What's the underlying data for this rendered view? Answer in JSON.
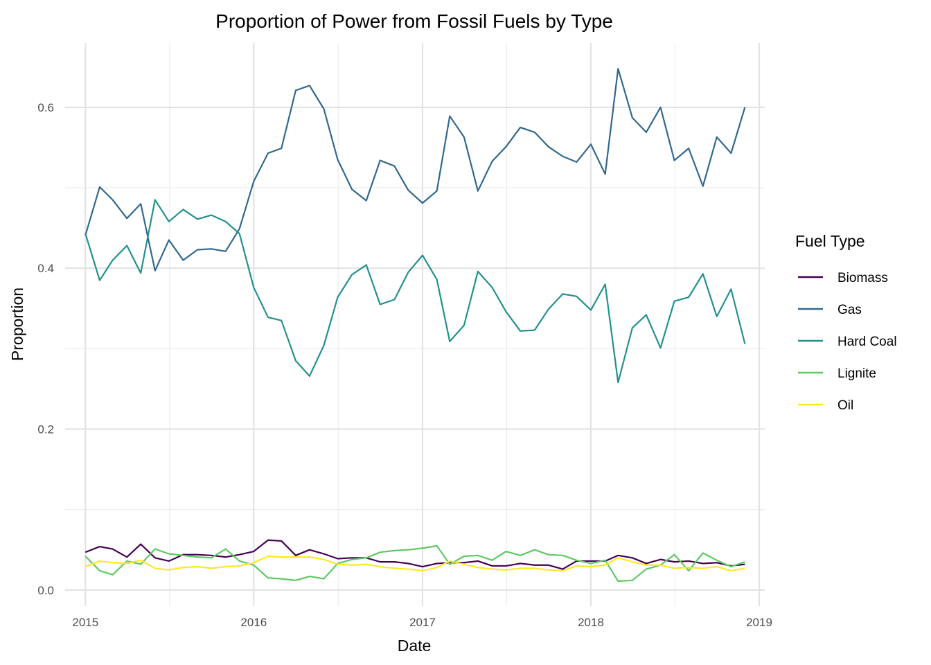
{
  "chart_data": {
    "type": "line",
    "title": "Proportion of Power from Fossil Fuels by Type",
    "xlabel": "Date",
    "ylabel": "Proportion",
    "xlim": [
      "2014-11-18",
      "2019-01-13"
    ],
    "ylim": [
      -0.02,
      0.68
    ],
    "grid": true,
    "legend_title": "Fuel Type",
    "legend_position": "right",
    "x_ticks": [
      "2015",
      "2016",
      "2017",
      "2018",
      "2019"
    ],
    "y_ticks": [
      "0.0",
      "0.2",
      "0.4",
      "0.6"
    ],
    "x": [
      "2015-01",
      "2015-02",
      "2015-03",
      "2015-04",
      "2015-05",
      "2015-06",
      "2015-07",
      "2015-08",
      "2015-09",
      "2015-10",
      "2015-11",
      "2015-12",
      "2016-01",
      "2016-02",
      "2016-03",
      "2016-04",
      "2016-05",
      "2016-06",
      "2016-07",
      "2016-08",
      "2016-09",
      "2016-10",
      "2016-11",
      "2016-12",
      "2017-01",
      "2017-02",
      "2017-03",
      "2017-04",
      "2017-05",
      "2017-06",
      "2017-07",
      "2017-08",
      "2017-09",
      "2017-10",
      "2017-11",
      "2017-12",
      "2018-01",
      "2018-02",
      "2018-03",
      "2018-04",
      "2018-05",
      "2018-06",
      "2018-07",
      "2018-08",
      "2018-09",
      "2018-10",
      "2018-11",
      "2018-12"
    ],
    "series": [
      {
        "name": "Biomass",
        "color": "#440154",
        "values": [
          0.047,
          0.054,
          0.051,
          0.041,
          0.057,
          0.04,
          0.036,
          0.044,
          0.044,
          0.043,
          0.041,
          0.044,
          0.048,
          0.062,
          0.061,
          0.043,
          0.05,
          0.045,
          0.039,
          0.04,
          0.04,
          0.035,
          0.035,
          0.033,
          0.029,
          0.033,
          0.034,
          0.034,
          0.036,
          0.03,
          0.03,
          0.033,
          0.031,
          0.031,
          0.026,
          0.036,
          0.036,
          0.036,
          0.043,
          0.04,
          0.033,
          0.038,
          0.035,
          0.036,
          0.033,
          0.034,
          0.03,
          0.032
        ]
      },
      {
        "name": "Gas",
        "color": "#31688e",
        "values": [
          0.441,
          0.501,
          0.485,
          0.462,
          0.48,
          0.397,
          0.435,
          0.41,
          0.423,
          0.424,
          0.421,
          0.449,
          0.508,
          0.543,
          0.549,
          0.621,
          0.627,
          0.598,
          0.535,
          0.498,
          0.484,
          0.534,
          0.527,
          0.497,
          0.481,
          0.496,
          0.589,
          0.563,
          0.496,
          0.533,
          0.551,
          0.575,
          0.569,
          0.551,
          0.539,
          0.532,
          0.554,
          0.517,
          0.648,
          0.587,
          0.569,
          0.6,
          0.534,
          0.549,
          0.502,
          0.563,
          0.543,
          0.6
        ]
      },
      {
        "name": "Hard Coal",
        "color": "#21918c",
        "values": [
          0.443,
          0.385,
          0.41,
          0.428,
          0.394,
          0.485,
          0.458,
          0.473,
          0.461,
          0.466,
          0.458,
          0.443,
          0.376,
          0.339,
          0.335,
          0.285,
          0.266,
          0.304,
          0.364,
          0.392,
          0.404,
          0.355,
          0.361,
          0.395,
          0.416,
          0.386,
          0.309,
          0.329,
          0.396,
          0.376,
          0.346,
          0.322,
          0.323,
          0.349,
          0.368,
          0.365,
          0.348,
          0.38,
          0.258,
          0.326,
          0.342,
          0.301,
          0.359,
          0.364,
          0.393,
          0.34,
          0.374,
          0.306
        ]
      },
      {
        "name": "Lignite",
        "color": "#5ec962",
        "values": [
          0.042,
          0.024,
          0.019,
          0.036,
          0.032,
          0.051,
          0.045,
          0.043,
          0.041,
          0.04,
          0.051,
          0.036,
          0.031,
          0.015,
          0.014,
          0.012,
          0.017,
          0.014,
          0.033,
          0.038,
          0.04,
          0.047,
          0.049,
          0.05,
          0.052,
          0.055,
          0.032,
          0.042,
          0.043,
          0.037,
          0.048,
          0.043,
          0.05,
          0.044,
          0.043,
          0.037,
          0.033,
          0.037,
          0.011,
          0.012,
          0.026,
          0.031,
          0.044,
          0.024,
          0.046,
          0.037,
          0.029,
          0.035
        ]
      },
      {
        "name": "Oil",
        "color": "#fde725",
        "values": [
          0.029,
          0.036,
          0.034,
          0.033,
          0.037,
          0.027,
          0.025,
          0.028,
          0.029,
          0.027,
          0.029,
          0.03,
          0.034,
          0.042,
          0.041,
          0.041,
          0.041,
          0.038,
          0.032,
          0.031,
          0.032,
          0.029,
          0.027,
          0.026,
          0.024,
          0.028,
          0.036,
          0.032,
          0.028,
          0.026,
          0.025,
          0.027,
          0.027,
          0.025,
          0.024,
          0.03,
          0.029,
          0.031,
          0.04,
          0.035,
          0.031,
          0.031,
          0.027,
          0.028,
          0.027,
          0.029,
          0.024,
          0.027
        ]
      }
    ]
  }
}
